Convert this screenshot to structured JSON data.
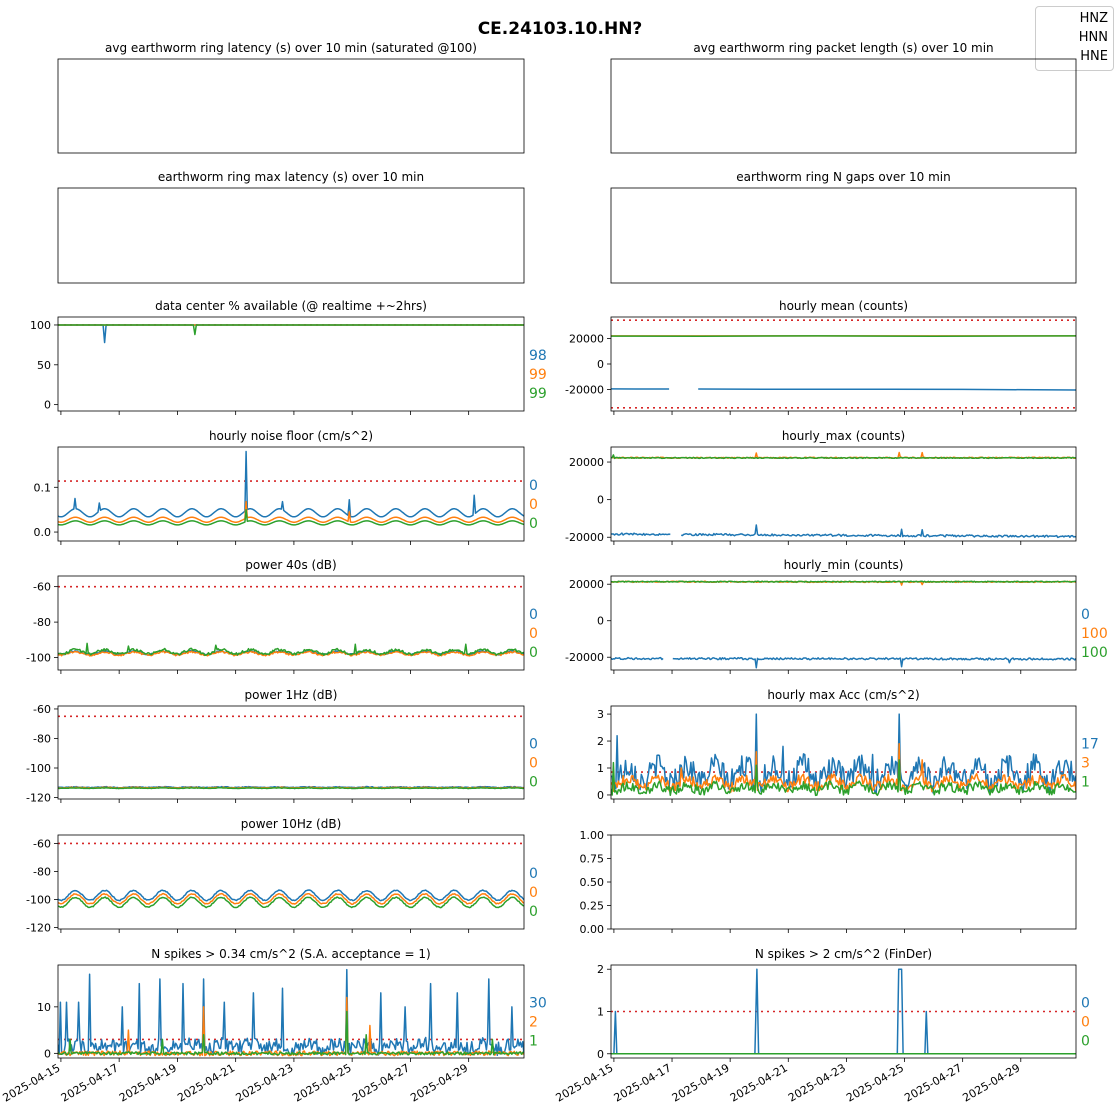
{
  "title": "CE.24103.10.HN?",
  "colors": {
    "HNZ": "#1f77b4",
    "HNN": "#ff7f0e",
    "HNE": "#2ca02c",
    "threshold": "#d62728"
  },
  "legend": [
    "HNZ",
    "HNN",
    "HNE"
  ],
  "x_ticks": [
    "2025-04-15",
    "2025-04-17",
    "2025-04-19",
    "2025-04-21",
    "2025-04-23",
    "2025-04-25",
    "2025-04-27",
    "2025-04-29"
  ],
  "chart_data": [
    {
      "id": "latency",
      "type": "line",
      "title": "avg earthworm ring latency (s)   over 10 min (saturated @100)",
      "yticks": [],
      "series": [],
      "side_stats": []
    },
    {
      "id": "packet_length",
      "type": "line",
      "title": "avg earthworm ring packet length (s)   over 10 min",
      "yticks": [],
      "series": [],
      "side_stats": []
    },
    {
      "id": "max_latency",
      "type": "line",
      "title": "earthworm ring max latency (s)   over 10 min",
      "yticks": [],
      "series": [],
      "side_stats": []
    },
    {
      "id": "n_gaps",
      "type": "line",
      "title": "earthworm ring N gaps   over 10 min",
      "yticks": [],
      "series": [],
      "side_stats": []
    },
    {
      "id": "availability",
      "type": "line",
      "title": "data center % available (@ realtime +~2hrs)",
      "ylim": [
        -8,
        110
      ],
      "yticks": [
        0,
        50,
        100
      ],
      "thresholds": [
        100
      ],
      "series": [
        {
          "name": "HNZ",
          "points": [
            [
              14.9,
              100
            ],
            [
              16.45,
              100
            ],
            [
              16.5,
              78
            ],
            [
              16.55,
              100
            ],
            [
              30.9,
              100
            ]
          ]
        },
        {
          "name": "HNN",
          "points": [
            [
              14.9,
              100
            ],
            [
              30.9,
              100
            ]
          ]
        },
        {
          "name": "HNE",
          "points": [
            [
              14.9,
              100
            ],
            [
              19.55,
              100
            ],
            [
              19.6,
              88
            ],
            [
              19.65,
              100
            ],
            [
              30.9,
              100
            ]
          ]
        }
      ],
      "side_stats": [
        "98",
        "99",
        "99"
      ]
    },
    {
      "id": "hourly_mean",
      "type": "line",
      "title": "hourly mean (counts)",
      "ylim": [
        -37000,
        37000
      ],
      "yticks": [
        -20000,
        0,
        20000
      ],
      "thresholds": [
        34500,
        -34500
      ],
      "series": [
        {
          "name": "HNZ",
          "points": [
            [
              14.9,
              -19600
            ],
            [
              16.9,
              -19700
            ],
            [
              null,
              null
            ],
            [
              17.9,
              -19700
            ],
            [
              21,
              -19900
            ],
            [
              24,
              -19800
            ],
            [
              27,
              -20000
            ],
            [
              30.9,
              -20500
            ]
          ]
        },
        {
          "name": "HNN",
          "points": [
            [
              14.9,
              22100
            ],
            [
              30.9,
              22100
            ]
          ]
        },
        {
          "name": "HNE",
          "points": [
            [
              14.9,
              22000
            ],
            [
              18,
              21900
            ],
            [
              22,
              22100
            ],
            [
              26,
              21900
            ],
            [
              30.9,
              22100
            ]
          ]
        }
      ],
      "side_stats": []
    },
    {
      "id": "noise_floor",
      "type": "line",
      "title": "hourly noise floor (cm/s^2)",
      "ylim": [
        -0.02,
        0.19
      ],
      "yticks": [
        0.0,
        0.1
      ],
      "thresholds": [
        0.114
      ],
      "series": [
        {
          "name": "HNZ",
          "base": 0.034,
          "amp": 0.018,
          "spikes": [
            [
              15.5,
              0.075
            ],
            [
              16.3,
              0.065
            ],
            [
              21.35,
              0.18
            ],
            [
              22.6,
              0.068
            ],
            [
              24.9,
              0.072
            ],
            [
              29.2,
              0.082
            ]
          ]
        },
        {
          "name": "HNN",
          "base": 0.022,
          "amp": 0.011,
          "spikes": [
            [
              21.35,
              0.068
            ],
            [
              24.9,
              0.045
            ]
          ]
        },
        {
          "name": "HNE",
          "base": 0.016,
          "amp": 0.009,
          "spikes": [
            [
              21.35,
              0.05
            ]
          ]
        }
      ],
      "side_stats": [
        "0",
        "0",
        "0"
      ]
    },
    {
      "id": "hourly_max",
      "type": "line",
      "title": "hourly_max (counts)",
      "ylim": [
        -22000,
        28000
      ],
      "yticks": [
        -20000,
        0,
        20000
      ],
      "thresholds": [],
      "series": [
        {
          "name": "HNZ",
          "base": -18300,
          "trend": -1300,
          "noise": 1100,
          "gap": [
            16.95,
            17.3
          ],
          "spikes": [
            [
              19.9,
              -13500
            ],
            [
              24.9,
              -15800
            ],
            [
              25.6,
              -16000
            ]
          ]
        },
        {
          "name": "HNN",
          "base": 22300,
          "trend": 0,
          "noise": 600,
          "spikes": [
            [
              19.9,
              24800
            ],
            [
              24.8,
              25100
            ],
            [
              25.6,
              25000
            ]
          ]
        },
        {
          "name": "HNE",
          "base": 22200,
          "trend": 0,
          "noise": 500,
          "spikes": [
            [
              15.0,
              23800
            ]
          ]
        }
      ],
      "side_stats": []
    },
    {
      "id": "power_40s",
      "type": "line",
      "title": "power 40s (dB)",
      "ylim": [
        -107,
        -54
      ],
      "yticks": [
        -100,
        -80,
        -60
      ],
      "thresholds": [
        -60
      ],
      "series": [
        {
          "name": "HNZ",
          "base": -98.2,
          "amp": 1.8,
          "noise": 0.8
        },
        {
          "name": "HNN",
          "base": -98.6,
          "amp": 1.8,
          "noise": 1.0
        },
        {
          "name": "HNE",
          "base": -98.0,
          "amp": 2.5,
          "noise": 1.5,
          "spikes": [
            [
              15.9,
              -92
            ],
            [
              17.3,
              -93.5
            ],
            [
              20.3,
              -93
            ],
            [
              25.1,
              -92.5
            ],
            [
              28.9,
              -92.5
            ]
          ]
        }
      ],
      "side_stats": [
        "0",
        "0",
        "0"
      ]
    },
    {
      "id": "hourly_min",
      "type": "line",
      "title": "hourly_min (counts)",
      "ylim": [
        -27000,
        24500
      ],
      "yticks": [
        -20000,
        0,
        20000
      ],
      "thresholds": [],
      "series": [
        {
          "name": "HNZ",
          "base": -20700,
          "trend": -300,
          "noise": 1100,
          "gap": [
            16.7,
            17.0
          ],
          "spikes": [
            [
              19.9,
              -25800
            ],
            [
              24.9,
              -25200
            ],
            [
              28.6,
              -23000
            ]
          ]
        },
        {
          "name": "HNN",
          "base": 21300,
          "trend": 0,
          "noise": 600,
          "spikes": [
            [
              24.9,
              19500
            ],
            [
              25.6,
              19800
            ]
          ]
        },
        {
          "name": "HNE",
          "base": 21400,
          "trend": 0,
          "noise": 500,
          "spikes": []
        }
      ],
      "side_stats": [
        "0",
        "100",
        "100"
      ]
    },
    {
      "id": "power_1hz",
      "type": "line",
      "title": "power 1Hz (dB)",
      "ylim": [
        -121,
        -58
      ],
      "yticks": [
        -120,
        -100,
        -80,
        -60
      ],
      "thresholds": [
        -65
      ],
      "series": [
        {
          "name": "HNZ",
          "base": -113.2,
          "amp": 0.4,
          "noise": 0.5
        },
        {
          "name": "HNN",
          "base": -113.5,
          "amp": 0.3,
          "noise": 0.4
        },
        {
          "name": "HNE",
          "base": -113.8,
          "amp": 0.3,
          "noise": 0.3
        }
      ],
      "side_stats": [
        "0",
        "0",
        "0"
      ]
    },
    {
      "id": "max_acc",
      "type": "line",
      "title": "hourly max Acc (cm/s^2)",
      "ylim": [
        -0.15,
        3.3
      ],
      "yticks": [
        0,
        1,
        2,
        3
      ],
      "thresholds": [
        0.85
      ],
      "series": [
        {
          "name": "HNZ",
          "base": 0.5,
          "amp": 0.6,
          "noise": 0.9,
          "spikes": [
            [
              15.1,
              2.2
            ],
            [
              17.3,
              1.1
            ],
            [
              19.9,
              3.0
            ],
            [
              20.8,
              1.8
            ],
            [
              23.9,
              1.5
            ],
            [
              24.8,
              3.0
            ],
            [
              25.5,
              1.4
            ],
            [
              28.4,
              1.3
            ]
          ]
        },
        {
          "name": "HNN",
          "base": 0.3,
          "amp": 0.3,
          "noise": 0.4,
          "spikes": [
            [
              17.3,
              1.0
            ],
            [
              19.9,
              1.6
            ],
            [
              24.8,
              1.9
            ],
            [
              25.6,
              1.3
            ]
          ]
        },
        {
          "name": "HNE",
          "base": 0.15,
          "amp": 0.2,
          "noise": 0.35,
          "spikes": [
            [
              15.0,
              1.2
            ],
            [
              19.9,
              1.1
            ],
            [
              24.8,
              1.3
            ]
          ]
        }
      ],
      "side_stats": [
        "17",
        "3",
        "1"
      ]
    },
    {
      "id": "power_10hz",
      "type": "line",
      "title": "power 10Hz (dB)",
      "ylim": [
        -121,
        -54
      ],
      "yticks": [
        -120,
        -100,
        -80,
        -60
      ],
      "thresholds": [
        -60
      ],
      "series": [
        {
          "name": "HNZ",
          "base": -100.5,
          "amp": 7,
          "noise": 0.8
        },
        {
          "name": "HNN",
          "base": -103,
          "amp": 7,
          "noise": 0.8
        },
        {
          "name": "HNE",
          "base": -105.5,
          "amp": 7,
          "noise": 0.8
        }
      ],
      "side_stats": [
        "0",
        "0",
        "0"
      ]
    },
    {
      "id": "empty_panel",
      "type": "line",
      "title": "",
      "ylim": [
        0,
        1
      ],
      "yticks": [
        "0.00",
        "0.25",
        "0.50",
        "0.75",
        "1.00"
      ],
      "series": [],
      "side_stats": []
    },
    {
      "id": "spikes_sa",
      "type": "line",
      "title": "N spikes > 0.34 cm/s^2 (S.A. acceptance = 1)",
      "ylim": [
        -1,
        19
      ],
      "yticks": [
        0,
        10
      ],
      "thresholds": [
        3
      ],
      "series": [
        {
          "name": "HNZ",
          "base": 1,
          "amp": 1,
          "noise": 3,
          "spikes": [
            [
              15.0,
              11
            ],
            [
              15.2,
              11
            ],
            [
              15.6,
              11
            ],
            [
              16.0,
              17
            ],
            [
              17.1,
              10
            ],
            [
              17.7,
              15
            ],
            [
              18.4,
              16
            ],
            [
              19.2,
              15
            ],
            [
              19.9,
              16
            ],
            [
              20.6,
              11
            ],
            [
              21.6,
              13
            ],
            [
              22.6,
              14
            ],
            [
              24.8,
              18
            ],
            [
              26.0,
              13
            ],
            [
              26.8,
              10
            ],
            [
              27.7,
              15
            ],
            [
              28.6,
              13
            ],
            [
              29.7,
              16
            ],
            [
              30.5,
              10
            ]
          ]
        },
        {
          "name": "HNN",
          "base": 0,
          "amp": 0,
          "noise": 1,
          "spikes": [
            [
              17.3,
              5
            ],
            [
              19.9,
              10
            ],
            [
              24.8,
              12
            ],
            [
              25.6,
              6
            ]
          ]
        },
        {
          "name": "HNE",
          "base": 0,
          "amp": 0,
          "noise": 0.6,
          "spikes": [
            [
              15.3,
              3
            ],
            [
              18.5,
              3
            ],
            [
              19.9,
              4
            ],
            [
              24.8,
              9
            ],
            [
              25.5,
              4
            ],
            [
              29.8,
              3
            ]
          ]
        }
      ],
      "side_stats": [
        "30",
        "2",
        "1"
      ]
    },
    {
      "id": "spikes_finder",
      "type": "line",
      "title": "N spikes > 2 cm/s^2 (FinDer)",
      "ylim": [
        -0.1,
        2.1
      ],
      "yticks": [
        0,
        1,
        2
      ],
      "thresholds": [
        1
      ],
      "series": [
        {
          "name": "HNZ",
          "points": [
            [
              14.9,
              0
            ],
            [
              15.0,
              0
            ],
            [
              15.05,
              1
            ],
            [
              15.1,
              0
            ],
            [
              19.85,
              0
            ],
            [
              19.92,
              2
            ],
            [
              19.98,
              0
            ],
            [
              24.75,
              0
            ],
            [
              24.8,
              2
            ],
            [
              24.9,
              2
            ],
            [
              24.95,
              0
            ],
            [
              25.7,
              0
            ],
            [
              25.75,
              1
            ],
            [
              25.8,
              0
            ],
            [
              30.9,
              0
            ]
          ]
        },
        {
          "name": "HNN",
          "points": [
            [
              14.9,
              0
            ],
            [
              30.9,
              0
            ]
          ]
        },
        {
          "name": "HNE",
          "points": [
            [
              14.9,
              0
            ],
            [
              30.9,
              0
            ]
          ]
        }
      ],
      "side_stats": [
        "0",
        "0",
        "0"
      ]
    }
  ]
}
